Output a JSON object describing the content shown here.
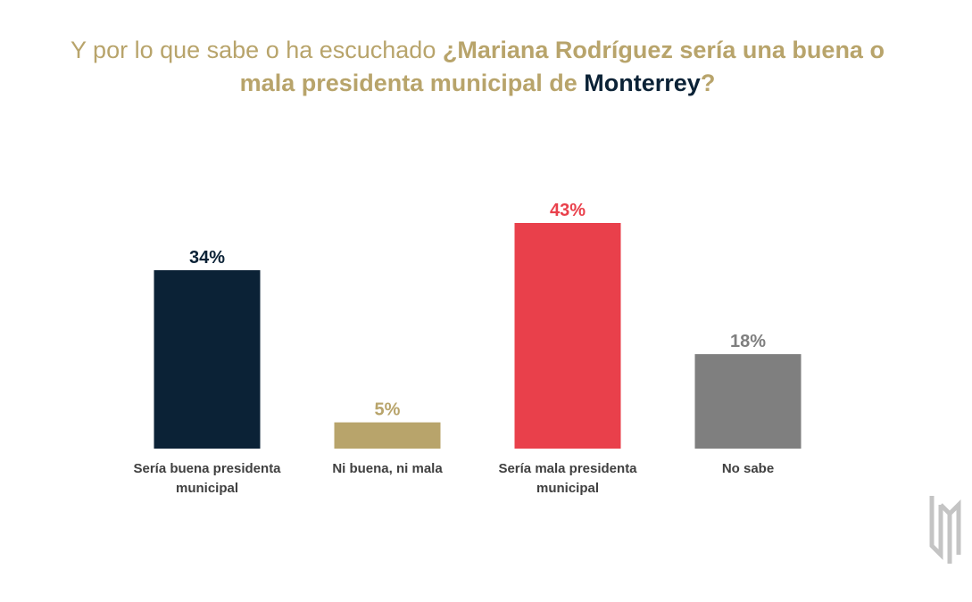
{
  "title": {
    "part1": "Y por lo que sabe o ha escuchado ",
    "part2": "¿Mariana Rodríguez sería una buena o",
    "part3": "mala presidenta municipal de ",
    "part4": "Monterrey",
    "part5": "?"
  },
  "colors": {
    "gold": "#b8a46b",
    "navy": "#0b2236"
  },
  "chart_data": {
    "type": "bar",
    "categories": [
      [
        "Sería buena presidenta",
        "municipal"
      ],
      [
        "Ni buena, ni mala"
      ],
      [
        "Sería mala presidenta",
        "municipal"
      ],
      [
        "No sabe"
      ]
    ],
    "values": [
      34,
      5,
      43,
      18
    ],
    "value_labels": [
      "34%",
      "5%",
      "43%",
      "18%"
    ],
    "bar_colors": [
      "#0b2236",
      "#b8a46b",
      "#e9404b",
      "#7f7f7f"
    ],
    "label_colors": [
      "#0b2236",
      "#b8a46b",
      "#e9404b",
      "#7f7f7f"
    ],
    "ylim": [
      0,
      43
    ],
    "grid": false,
    "legend": "none"
  },
  "logo": {
    "icon": "brand-logo-icon"
  }
}
